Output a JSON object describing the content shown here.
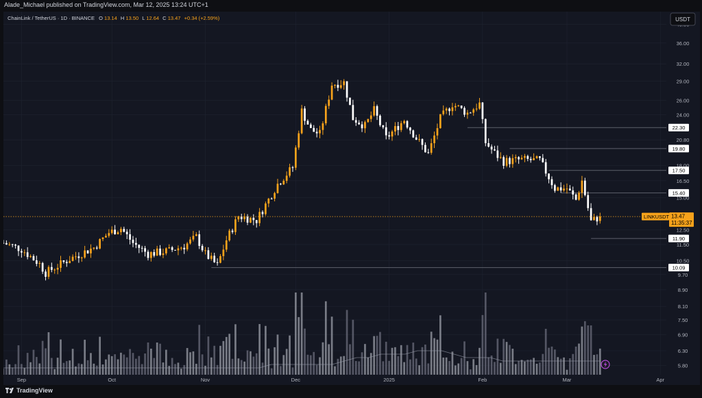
{
  "header": {
    "published": "Alade_Michael published on TradingView.com, Mar 12, 2025 13:24 UTC+1"
  },
  "legend": {
    "symbol": "ChainLink / TetherUS · 1D · BINANCE",
    "o_label": "O",
    "o": "13.14",
    "h_label": "H",
    "h": "13.50",
    "l_label": "L",
    "l": "12.64",
    "c_label": "C",
    "c": "13.47",
    "change": "+0.34 (+2.59%)"
  },
  "currency_button": "USDT",
  "footer": {
    "brand": "TradingView",
    "logo": "17"
  },
  "colors": {
    "up": "#f7a21b",
    "down": "#ffffff",
    "background": "#141722",
    "grid": "#1f2330",
    "axis_text": "#b2b5be",
    "level_line": "#5d606b",
    "volume_up": "#8a8d96",
    "volume_down": "#5f6270",
    "lightning_icon": "#b24ad6"
  },
  "chart_data": {
    "type": "candlestick",
    "symbol": "LINKUSDT",
    "interval": "1D",
    "y_scale": "log",
    "ylim": [
      5.5,
      43
    ],
    "y_ticks": [
      40.0,
      36.0,
      32.0,
      29.0,
      26.0,
      24.0,
      20.8,
      18.0,
      16.5,
      15.0,
      12.5,
      11.5,
      10.5,
      9.7,
      8.9,
      8.1,
      7.5,
      6.9,
      6.3,
      5.8
    ],
    "x_ticks": [
      "Sep",
      "Oct",
      "Nov",
      "Dec",
      "2025",
      "Feb",
      "Mar",
      "Apr"
    ],
    "x_tick_dates": [
      "2024-09-01",
      "2024-10-01",
      "2024-11-01",
      "2024-12-01",
      "2025-01-01",
      "2025-02-01",
      "2025-03-01",
      "2025-04-01"
    ],
    "x_range": [
      "2024-08-26",
      "2025-04-03"
    ],
    "levels": [
      {
        "value": 22.3,
        "label": "22.30",
        "from": "2025-01-27"
      },
      {
        "value": 19.8,
        "label": "19.80",
        "from": "2025-02-10"
      },
      {
        "value": 17.5,
        "label": "17.50",
        "from": "2025-02-23"
      },
      {
        "value": 15.4,
        "label": "15.40",
        "from": "2025-02-27"
      },
      {
        "value": 11.9,
        "label": "11.90",
        "from": "2025-03-09"
      },
      {
        "value": 10.09,
        "label": "10.09",
        "from": "2024-11-03"
      }
    ],
    "last_price": {
      "symbol": "LINKUSDT",
      "value": 13.47,
      "label": "13.47",
      "countdown": "11:35:37"
    },
    "volume_ma_path": [
      2,
      2,
      2,
      2,
      2,
      2,
      2,
      2,
      2,
      2,
      2,
      2,
      2,
      2,
      2,
      2,
      2,
      2,
      2,
      2,
      2,
      2,
      3,
      3,
      3,
      3,
      3,
      3,
      4,
      5,
      5,
      6,
      6,
      6,
      7,
      7,
      7,
      6,
      5,
      5,
      5,
      4,
      4,
      4,
      4,
      4,
      4,
      4,
      4,
      4
    ],
    "control_points": [
      [
        "2024-08-26",
        11.6
      ],
      [
        "2024-09-01",
        11.2
      ],
      [
        "2024-09-07",
        10.3
      ],
      [
        "2024-09-09",
        9.8
      ],
      [
        "2024-09-17",
        10.6
      ],
      [
        "2024-09-25",
        11.3
      ],
      [
        "2024-09-30",
        12.3
      ],
      [
        "2024-10-04",
        12.6
      ],
      [
        "2024-10-08",
        11.6
      ],
      [
        "2024-10-13",
        10.9
      ],
      [
        "2024-10-20",
        11.1
      ],
      [
        "2024-10-25",
        11.4
      ],
      [
        "2024-10-29",
        12.0
      ],
      [
        "2024-11-01",
        10.9
      ],
      [
        "2024-11-05",
        10.2
      ],
      [
        "2024-11-08",
        11.8
      ],
      [
        "2024-11-12",
        13.5
      ],
      [
        "2024-11-18",
        13.2
      ],
      [
        "2024-11-25",
        16.2
      ],
      [
        "2024-11-30",
        17.8
      ],
      [
        "2024-12-03",
        24.5
      ],
      [
        "2024-12-06",
        22.0
      ],
      [
        "2024-12-09",
        21.5
      ],
      [
        "2024-12-13",
        28.5
      ],
      [
        "2024-12-17",
        28.8
      ],
      [
        "2024-12-20",
        23.5
      ],
      [
        "2024-12-24",
        22.5
      ],
      [
        "2024-12-27",
        24.6
      ],
      [
        "2024-12-31",
        21.0
      ],
      [
        "2025-01-06",
        23.3
      ],
      [
        "2025-01-10",
        21.0
      ],
      [
        "2025-01-14",
        19.2
      ],
      [
        "2025-01-18",
        23.5
      ],
      [
        "2025-01-22",
        25.5
      ],
      [
        "2025-01-27",
        24.2
      ],
      [
        "2025-01-31",
        25.5
      ],
      [
        "2025-02-02",
        20.5
      ],
      [
        "2025-02-05",
        19.3
      ],
      [
        "2025-02-08",
        18.4
      ],
      [
        "2025-02-14",
        18.6
      ],
      [
        "2025-02-20",
        18.5
      ],
      [
        "2025-02-25",
        15.8
      ],
      [
        "2025-03-01",
        15.8
      ],
      [
        "2025-03-04",
        14.8
      ],
      [
        "2025-03-06",
        16.5
      ],
      [
        "2025-03-09",
        13.1
      ],
      [
        "2025-03-12",
        13.47
      ]
    ]
  }
}
